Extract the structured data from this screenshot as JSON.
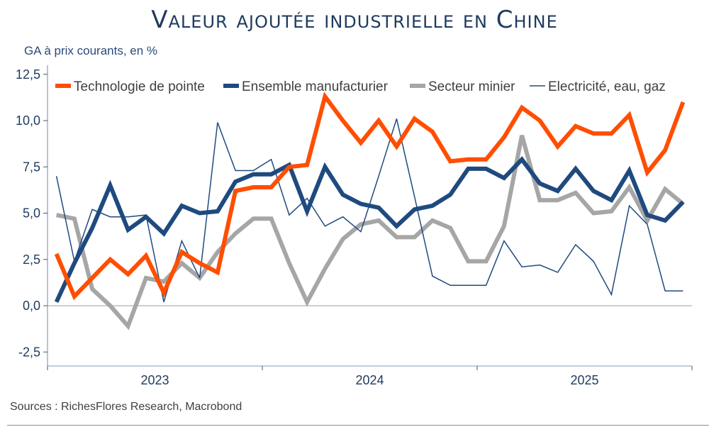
{
  "header": {
    "title": "Valeur ajoutée industrielle en Chine",
    "subtitle": "GA à prix courants, en %"
  },
  "footer": {
    "source": "Sources : RichesFlores Research, Macrobond"
  },
  "chart_data": {
    "type": "line",
    "title": "Valeur ajoutée industrielle en Chine",
    "subtitle": "GA à prix courants, en %",
    "xlabel": "",
    "ylabel": "GA à prix courants, en %",
    "ylim": [
      -3.2,
      12.5
    ],
    "yticks": [
      -2.5,
      0.0,
      2.5,
      5.0,
      7.5,
      10.0,
      12.5
    ],
    "ytick_labels": [
      "-2,5",
      "0,0",
      "2,5",
      "5,0",
      "7,5",
      "10,0",
      "12,5"
    ],
    "xtick_labels": [
      "2023",
      "2024",
      "2025"
    ],
    "x": [
      "2023-01",
      "2023-02",
      "2023-03",
      "2023-04",
      "2023-05",
      "2023-06",
      "2023-07",
      "2023-08",
      "2023-09",
      "2023-10",
      "2023-11",
      "2023-12",
      "2024-01",
      "2024-02",
      "2024-03",
      "2024-04",
      "2024-05",
      "2024-06",
      "2024-07",
      "2024-08",
      "2024-09",
      "2024-10",
      "2024-11",
      "2024-12",
      "2025-01",
      "2025-02",
      "2025-03",
      "2025-04",
      "2025-05",
      "2025-06",
      "2025-07",
      "2025-08",
      "2025-09",
      "2025-10",
      "2025-11",
      "2025-12"
    ],
    "grid": false,
    "zero_line": true,
    "legend_position": "top",
    "series": [
      {
        "name": "Technologie de pointe",
        "color": "#ff4e00",
        "style": "thick",
        "values": [
          2.8,
          0.5,
          1.5,
          2.5,
          1.7,
          2.7,
          0.7,
          2.9,
          2.3,
          1.8,
          6.2,
          6.4,
          6.4,
          7.5,
          7.6,
          11.3,
          10.0,
          8.8,
          10.0,
          8.6,
          10.1,
          9.4,
          7.8,
          7.9,
          7.9,
          9.1,
          10.7,
          10.0,
          8.6,
          9.7,
          9.3,
          9.3,
          10.3,
          7.2,
          8.4,
          11.0
        ]
      },
      {
        "name": "Ensemble manufacturier",
        "color": "#1f4a7f",
        "style": "thick",
        "values": [
          0.2,
          2.3,
          4.2,
          6.5,
          4.1,
          4.8,
          3.9,
          5.4,
          5.0,
          5.1,
          6.7,
          7.1,
          7.1,
          7.6,
          5.1,
          7.5,
          6.0,
          5.5,
          5.3,
          4.3,
          5.2,
          5.4,
          6.0,
          7.4,
          7.4,
          6.9,
          7.9,
          6.6,
          6.2,
          7.4,
          6.2,
          5.7,
          7.3,
          4.9,
          4.6,
          5.6
        ]
      },
      {
        "name": "Secteur minier",
        "color": "#a6a6a6",
        "style": "thick",
        "values": [
          4.9,
          4.7,
          0.9,
          0.0,
          -1.1,
          1.5,
          1.3,
          2.3,
          1.5,
          2.9,
          3.9,
          4.7,
          4.7,
          2.3,
          0.2,
          2.0,
          3.6,
          4.4,
          4.6,
          3.7,
          3.7,
          4.6,
          4.2,
          2.4,
          2.4,
          4.3,
          9.2,
          5.7,
          5.7,
          6.1,
          5.0,
          5.1,
          6.4,
          4.6,
          6.3,
          5.5
        ]
      },
      {
        "name": "Electricité, eau, gaz",
        "color": "#1f4a7f",
        "style": "thin",
        "values": [
          7.0,
          2.4,
          5.2,
          4.8,
          4.8,
          4.9,
          0.2,
          3.5,
          1.5,
          9.9,
          7.3,
          7.3,
          7.9,
          4.9,
          5.8,
          4.3,
          4.8,
          4.0,
          7.0,
          10.1,
          5.9,
          1.6,
          1.1,
          1.1,
          1.1,
          3.5,
          2.1,
          2.2,
          1.8,
          3.3,
          2.4,
          0.6,
          5.4,
          4.4,
          0.8,
          0.8
        ]
      }
    ]
  }
}
